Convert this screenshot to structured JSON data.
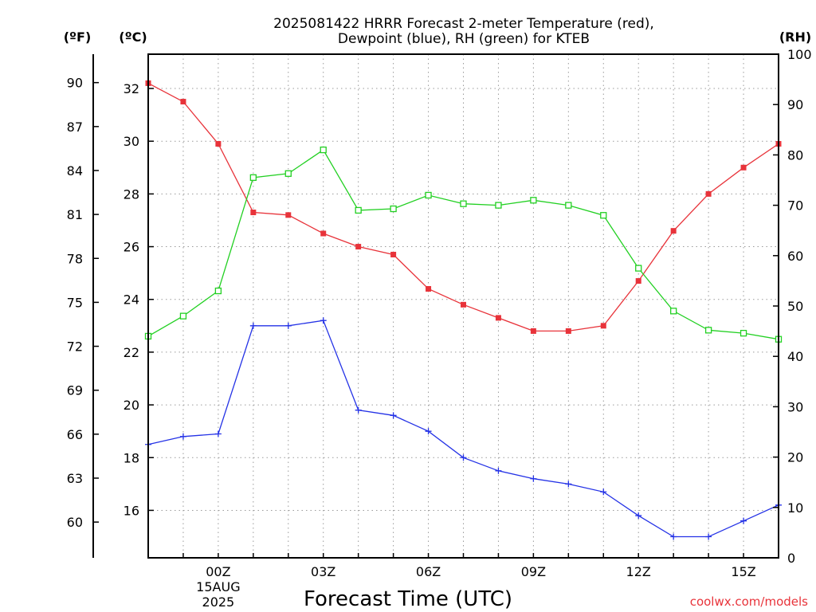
{
  "chart_data": {
    "type": "line",
    "title_line1": "2025081422 HRRR Forecast 2-meter Temperature (red),",
    "title_line2": "Dewpoint (blue), RH (green) for KTEB",
    "xlabel": "Forecast Time (UTC)",
    "credit": "coolwx.com/models",
    "units": {
      "fahrenheit": "(ºF)",
      "celsius": "(ºC)",
      "rh": "(RH)"
    },
    "x_hours": [
      -2,
      -1,
      0,
      1,
      2,
      3,
      4,
      5,
      6,
      7,
      8,
      9,
      10,
      11,
      12,
      13,
      14,
      15,
      16
    ],
    "xlim": [
      -2,
      16
    ],
    "x_ticks": [
      {
        "hour": 0,
        "label": "00Z",
        "sub1": "15AUG",
        "sub2": "2025"
      },
      {
        "hour": 3,
        "label": "03Z",
        "sub1": "",
        "sub2": ""
      },
      {
        "hour": 6,
        "label": "06Z",
        "sub1": "",
        "sub2": ""
      },
      {
        "hour": 9,
        "label": "09Z",
        "sub1": "",
        "sub2": ""
      },
      {
        "hour": 12,
        "label": "12Z",
        "sub1": "",
        "sub2": ""
      },
      {
        "hour": 15,
        "label": "15Z",
        "sub1": "",
        "sub2": ""
      }
    ],
    "ylim_c": [
      14.2,
      33.3
    ],
    "y_ticks_c": [
      16,
      18,
      20,
      22,
      24,
      26,
      28,
      30,
      32
    ],
    "y_ticks_f": [
      60,
      63,
      66,
      69,
      72,
      75,
      78,
      81,
      84,
      87,
      90
    ],
    "ylim_rh": [
      0,
      100
    ],
    "y_ticks_rh": [
      0,
      10,
      20,
      30,
      40,
      50,
      60,
      70,
      80,
      90,
      100
    ],
    "series": [
      {
        "axis": "c",
        "color": "#e8333a",
        "marker": "filled-square",
        "values": [
          32.2,
          31.5,
          29.9,
          27.3,
          27.2,
          26.5,
          26.0,
          25.7,
          24.4,
          23.8,
          23.3,
          22.8,
          22.8,
          23.0,
          24.7,
          26.6,
          28.0,
          29.0,
          29.9
        ]
      },
      {
        "axis": "c",
        "color": "#2432e6",
        "marker": "plus",
        "values": [
          18.5,
          18.8,
          18.9,
          23.0,
          23.0,
          23.2,
          19.8,
          19.6,
          19.0,
          18.0,
          17.5,
          17.2,
          17.0,
          16.7,
          15.8,
          15.0,
          15.0,
          15.6,
          16.2
        ]
      },
      {
        "axis": "rh",
        "color": "#22d022",
        "marker": "open-square",
        "values": [
          44,
          48,
          53,
          75.5,
          76.3,
          81,
          69,
          69.3,
          72,
          70.3,
          70,
          71,
          70,
          68,
          57.5,
          49,
          45.2,
          44.6,
          43.4
        ]
      }
    ]
  }
}
